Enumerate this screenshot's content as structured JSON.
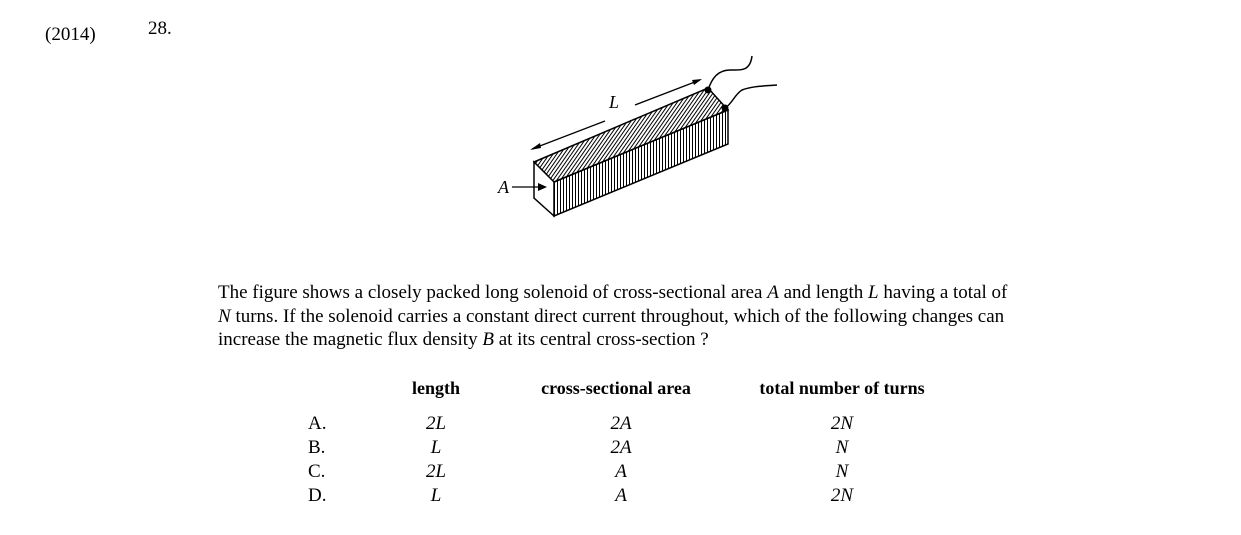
{
  "header": {
    "year": "(2014)",
    "question_number": "28."
  },
  "figure": {
    "label_length": "L",
    "label_area": "A"
  },
  "stem": {
    "line1_a": "The figure shows a closely packed long solenoid of cross-sectional area ",
    "line1_var_a": "A",
    "line1_b": " and length ",
    "line1_var_b": "L",
    "line1_c": " having a total of",
    "line2_var": "N",
    "line2_rest": " turns.  If the solenoid carries a constant direct current throughout, which of the following changes can",
    "line3_a": "increase the magnetic flux density ",
    "line3_var": "B",
    "line3_b": " at its central cross-section ?"
  },
  "table": {
    "headers": [
      "length",
      "cross-sectional area",
      "total number of turns"
    ],
    "rows": [
      {
        "letter": "A.",
        "length": "2L",
        "area": "2A",
        "turns": "2N"
      },
      {
        "letter": "B.",
        "length": "L",
        "area": "2A",
        "turns": "N"
      },
      {
        "letter": "C.",
        "length": "2L",
        "area": "A",
        "turns": "N"
      },
      {
        "letter": "D.",
        "length": "L",
        "area": "A",
        "turns": "2N"
      }
    ]
  }
}
